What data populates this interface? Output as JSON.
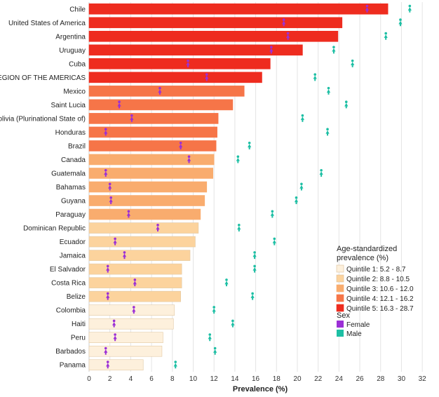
{
  "chart_data": {
    "type": "bar",
    "xlabel": "Prevalence (%)",
    "xlim": [
      0,
      33
    ],
    "xticks": [
      0,
      2,
      4,
      6,
      8,
      10,
      12,
      14,
      16,
      18,
      20,
      22,
      24,
      26,
      28,
      30,
      32
    ],
    "grid": "vertical",
    "categories": [
      "Chile",
      "United States of America",
      "Argentina",
      "Uruguay",
      "Cuba",
      "REGION OF THE AMERICAS",
      "Mexico",
      "Saint Lucia",
      "Bolivia (Plurinational State of)",
      "Honduras",
      "Brazil",
      "Canada",
      "Guatemala",
      "Bahamas",
      "Guyana",
      "Paraguay",
      "Dominican Republic",
      "Ecuador",
      "Jamaica",
      "El Salvador",
      "Costa Rica",
      "Belize",
      "Colombia",
      "Haiti",
      "Peru",
      "Barbados",
      "Panama"
    ],
    "values": [
      28.7,
      24.3,
      23.9,
      20.5,
      17.4,
      16.6,
      14.9,
      13.8,
      12.4,
      12.3,
      12.2,
      12.0,
      11.9,
      11.3,
      11.1,
      10.7,
      10.5,
      10.2,
      9.7,
      8.9,
      8.9,
      8.8,
      8.2,
      8.1,
      7.1,
      7.0,
      5.2
    ],
    "quintile": [
      5,
      5,
      5,
      5,
      5,
      5,
      4,
      4,
      4,
      4,
      4,
      3,
      3,
      3,
      3,
      3,
      2,
      2,
      2,
      2,
      2,
      2,
      1,
      1,
      1,
      1,
      1
    ],
    "series": [
      {
        "name": "Female",
        "values": [
          26.7,
          18.7,
          19.1,
          17.5,
          9.5,
          11.3,
          6.8,
          2.9,
          4.1,
          1.6,
          8.8,
          9.6,
          1.6,
          2.0,
          2.1,
          3.8,
          6.6,
          2.5,
          3.4,
          1.8,
          4.4,
          1.8,
          4.3,
          2.4,
          2.5,
          1.6,
          1.8
        ]
      },
      {
        "name": "Male",
        "values": [
          30.8,
          29.9,
          28.5,
          23.5,
          25.3,
          21.7,
          23.0,
          24.7,
          20.5,
          22.9,
          15.4,
          14.3,
          22.3,
          20.4,
          19.9,
          17.6,
          14.4,
          17.8,
          15.9,
          15.9,
          13.2,
          15.7,
          12.0,
          13.8,
          11.6,
          12.1,
          8.3
        ]
      }
    ]
  },
  "legend": {
    "title_line1": "Age-standardized",
    "title_line2": "prevalence (%)",
    "quintiles": [
      {
        "label": "Quintile 1: 5.2 - 8.7",
        "color": "#fdf0dc"
      },
      {
        "label": "Quintile 2: 8.8 - 10.5",
        "color": "#fcd39d"
      },
      {
        "label": "Quintile 3: 10.6 - 12.0",
        "color": "#f9ac6e"
      },
      {
        "label": "Quintile 4: 12.1 - 16.2",
        "color": "#f67548"
      },
      {
        "label": "Quintile 5: 16.3 - 28.7",
        "color": "#ee2c1f"
      }
    ],
    "sex_title": "Sex",
    "sex": [
      {
        "label": "Female",
        "color": "#9b2fd6"
      },
      {
        "label": "Male",
        "color": "#1dbfa4"
      }
    ]
  }
}
